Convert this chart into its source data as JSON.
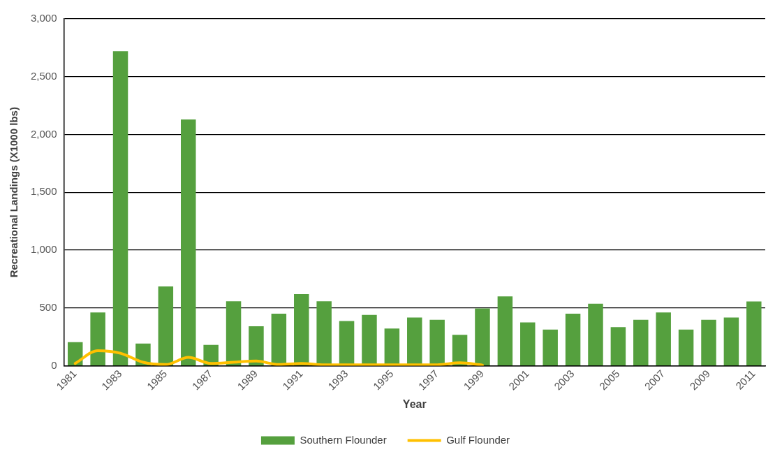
{
  "chart_data": {
    "type": "bar",
    "xlabel": "Year",
    "ylabel": "Recreational Landings (X1000 lbs)",
    "categories": [
      "1981",
      null,
      "1983",
      null,
      "1985",
      null,
      "1987",
      null,
      "1989",
      null,
      "1991",
      null,
      "1993",
      null,
      "1995",
      null,
      "1997",
      null,
      "1999",
      null,
      "2001",
      null,
      "2003",
      null,
      "2005",
      null,
      "2007",
      null,
      "2009",
      null,
      "2011"
    ],
    "series": [
      {
        "name": "Southern Flounder",
        "color": "#55a03e",
        "values": [
          204,
          460,
          2720,
          192,
          686,
          2130,
          180,
          558,
          342,
          450,
          619,
          558,
          386,
          439,
          322,
          417,
          397,
          268,
          496,
          599,
          375,
          312,
          450,
          536,
          333,
          397,
          460,
          312,
          397,
          417,
          556
        ]
      },
      {
        "name": "Gulf Flounder",
        "type": "line",
        "color": "#ffc000",
        "values": [
          20,
          130,
          108,
          30,
          10,
          72,
          20,
          30,
          40,
          10,
          20,
          8,
          8,
          8,
          8,
          8,
          8,
          25,
          5,
          null,
          null,
          null,
          null,
          null,
          null,
          null,
          null,
          null,
          null,
          null,
          null
        ]
      }
    ],
    "ylim": [
      0,
      3000
    ],
    "yticks": [
      {
        "value": 0,
        "label": "0"
      },
      {
        "value": 500,
        "label": "500"
      },
      {
        "value": 1000,
        "label": "1,000"
      },
      {
        "value": 1500,
        "label": "1,500"
      },
      {
        "value": 2000,
        "label": "2,000"
      },
      {
        "value": 2500,
        "label": "2,500"
      },
      {
        "value": 3000,
        "label": "3,000"
      }
    ],
    "grid": "y",
    "legend": "bottom",
    "marker": "none",
    "line_style": "solid"
  }
}
